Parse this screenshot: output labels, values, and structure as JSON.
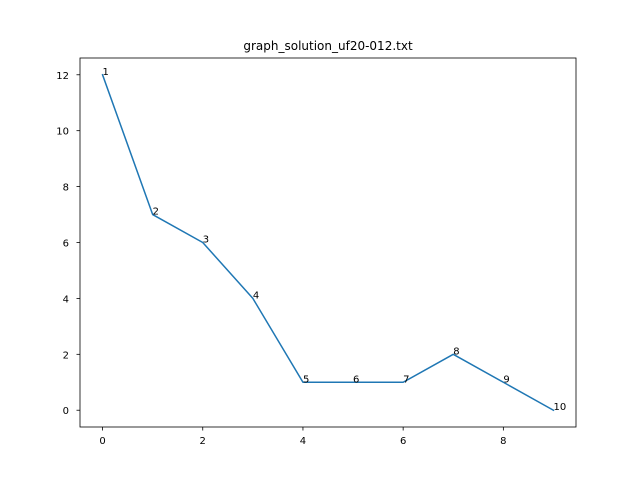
{
  "chart_data": {
    "type": "line",
    "title": "graph_solution_uf20-012.txt",
    "xlabel": "",
    "ylabel": "",
    "x": [
      0,
      1,
      2,
      3,
      4,
      5,
      6,
      7,
      8,
      9
    ],
    "series": [
      {
        "values": [
          12,
          7,
          6,
          4,
          1,
          1,
          1,
          2,
          1,
          0
        ],
        "color": "#1f77b4"
      }
    ],
    "point_labels": [
      "1",
      "2",
      "3",
      "4",
      "5",
      "6",
      "7",
      "8",
      "9",
      "10"
    ],
    "xlim": [
      -0.45,
      9.45
    ],
    "ylim": [
      -0.6,
      12.6
    ],
    "xticks": [
      0,
      2,
      4,
      6,
      8
    ],
    "yticks": [
      0,
      2,
      4,
      6,
      8,
      10,
      12
    ],
    "grid": false,
    "legend": "none"
  }
}
